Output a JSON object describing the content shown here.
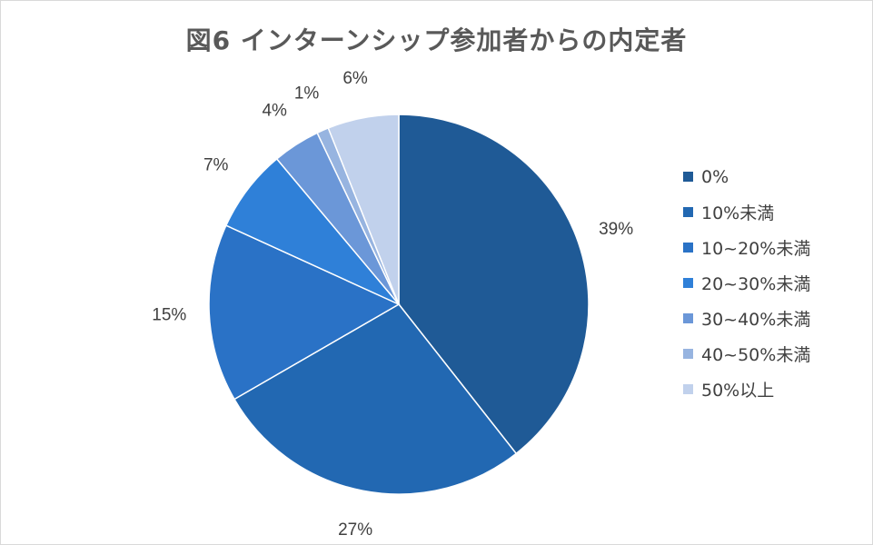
{
  "chart_data": {
    "type": "pie",
    "title": "図6 インターンシップ参加者からの内定者",
    "slices": [
      {
        "label": "0%",
        "value": 39,
        "data_label": "39%",
        "color": "#1f5a96"
      },
      {
        "label": "10%未満",
        "value": 27,
        "data_label": "27%",
        "color": "#2268b2"
      },
      {
        "label": "10~20%未満",
        "value": 15,
        "data_label": "15%",
        "color": "#2a72c6"
      },
      {
        "label": "20~30%未満",
        "value": 7,
        "data_label": "7%",
        "color": "#2f80d8"
      },
      {
        "label": "30~40%未満",
        "value": 4,
        "data_label": "4%",
        "color": "#6b97d8"
      },
      {
        "label": "40~50%未満",
        "value": 1,
        "data_label": "1%",
        "color": "#97b4e0"
      },
      {
        "label": "50%以上",
        "value": 6,
        "data_label": "6%",
        "color": "#c1d1ec"
      }
    ],
    "legend_position": "right"
  }
}
